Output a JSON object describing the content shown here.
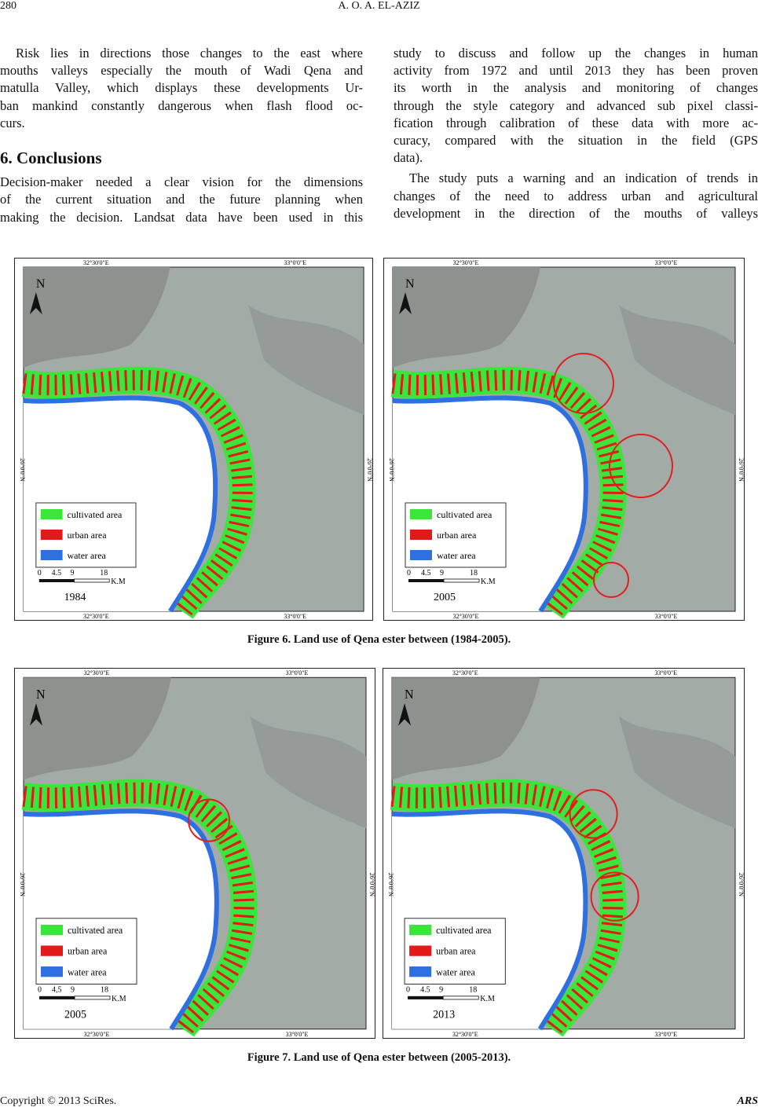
{
  "header": {
    "page_number": "280",
    "author": "A. O. A. EL-AZIZ"
  },
  "left_column": {
    "paragraph_1": [
      "Risk lies in directions those changes to the east where",
      "mouths valleys especially the mouth of Wadi Qena and",
      "matulla Valley, which displays these developments Ur-",
      "ban mankind constantly dangerous when flash flood oc-",
      "curs."
    ],
    "heading": "6. Conclusions",
    "paragraph_2": [
      "Decision-maker needed a clear vision for the dimensions",
      "of the current situation and the future planning when",
      "making the decision. Landsat data have been used in this"
    ]
  },
  "right_column": {
    "paragraph_1": [
      "study to discuss and follow up the changes in human",
      "activity from 1972 and until 2013 they has been proven",
      "its worth in the analysis and monitoring of changes",
      "through the style category and advanced sub pixel classi-",
      "fication through calibration of these data with more ac-",
      "curacy, compared with the situation in the field (GPS",
      "data)."
    ],
    "paragraph_2": [
      "The study puts a warning and an indication of trends in",
      "changes of the need to address urban and agricultural",
      "development in the direction of the mouths of valleys"
    ]
  },
  "figures": [
    {
      "caption": "Figure 6. Land use of Qena ester between (1984-2005).",
      "maps": [
        {
          "north": "N",
          "lon_labels": [
            "32°30'0\"E",
            "33°0'0\"E"
          ],
          "lat_label": "26°0'0\"N",
          "legend": [
            "cultivated area",
            "urban area",
            "water area"
          ],
          "scale": [
            "0",
            "4.5",
            "9",
            "18",
            "K.M"
          ],
          "year": "1984"
        },
        {
          "north": "N",
          "lon_labels": [
            "32°30'0\"E",
            "33°0'0\"E"
          ],
          "lat_label": "26°0'0\"N",
          "legend": [
            "cultivated area",
            "urban area",
            "water area"
          ],
          "scale": [
            "0",
            "4.5",
            "9",
            "18",
            "K.M"
          ],
          "year": "2005"
        }
      ]
    },
    {
      "caption": "Figure 7. Land use of Qena ester between (2005-2013).",
      "maps": [
        {
          "north": "N",
          "lon_labels": [
            "32°30'0\"E",
            "33°0'0\"E"
          ],
          "lat_label": "26°0'0\"N",
          "legend": [
            "cultivated area",
            "urban area",
            "water area"
          ],
          "scale": [
            "0",
            "4,5",
            "9",
            "18",
            "K.M"
          ],
          "year": "2005"
        },
        {
          "north": "N",
          "lon_labels": [
            "32°30'0\"E",
            "33°0'0\"E"
          ],
          "lat_label": "26°0'0\"N",
          "legend": [
            "cultivated area",
            "urban area",
            "water area"
          ],
          "scale": [
            "0",
            "4.5",
            "9",
            "18",
            "K.M"
          ],
          "year": "2013"
        }
      ]
    }
  ],
  "footer": {
    "copyright": "Copyright © 2013 SciRes.",
    "journal": "ARS"
  }
}
